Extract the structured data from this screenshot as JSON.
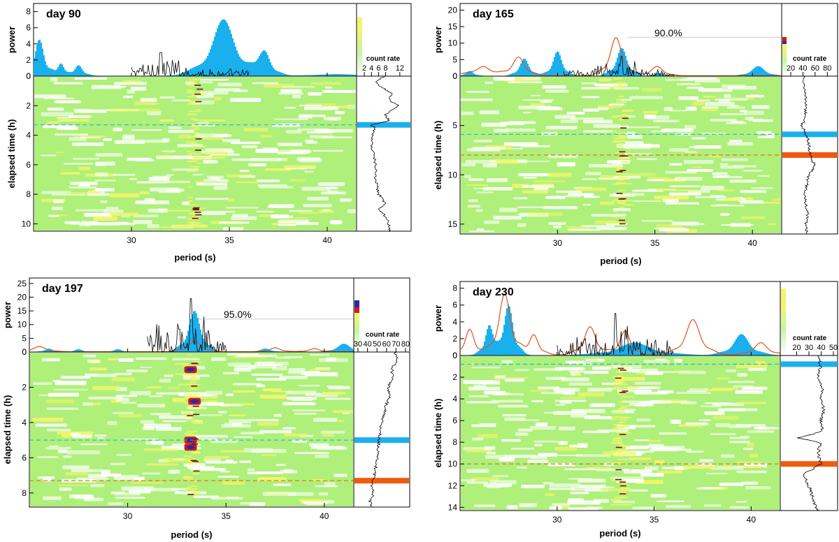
{
  "colors": {
    "histogram": "#1ab0ee",
    "power_trace": "#000000",
    "significance_curve": "#e0531c",
    "heatmap_bg": "#ffffff",
    "heatmap_green": "#aef07a",
    "heatmap_yellow": "#f2f56a",
    "hot_red": "#d81818",
    "hot_blue": "#2a2aa8",
    "cyan_marker": "#1ab0ee",
    "orange_marker": "#f05a0f"
  },
  "chart_data": [
    {
      "type": "heatmap",
      "title": "day 90",
      "xlabel": "period (s)",
      "ylabel_top": "power",
      "ylabel_bottom": "elapsed time (h)",
      "xlim": [
        25,
        41.5
      ],
      "xticks": [
        "30",
        "35",
        "40"
      ],
      "power_ylim": [
        0,
        9
      ],
      "power_yticks": [
        "0",
        "2",
        "4",
        "6",
        "8"
      ],
      "time_ylim": [
        0,
        10.5
      ],
      "time_yticks": [
        "0",
        "2",
        "4",
        "6",
        "8",
        "10"
      ],
      "colorbar_label": "count rate",
      "colorbar_ticks": [
        "2",
        "4",
        "6",
        "8",
        "12"
      ],
      "colorbar_ticks_pos": [
        2,
        4,
        6,
        8,
        12
      ],
      "colorbar_range": [
        1,
        14
      ],
      "significance_label": "",
      "significance_level": null,
      "power_bumps": [
        [
          25.3,
          4.5,
          0.35
        ],
        [
          26.4,
          1.5,
          0.25
        ],
        [
          27.3,
          1.3,
          0.3
        ],
        [
          34.7,
          7.0,
          0.85
        ],
        [
          36.8,
          2.8,
          0.45
        ],
        [
          40.5,
          0.2,
          1.5
        ]
      ],
      "sig_bumps": [],
      "noise_range": [
        30,
        36
      ],
      "noise_peak": 2.9,
      "noise_peak_x": 31.5,
      "markers": [
        {
          "time": 3.3,
          "color": "cyan"
        }
      ],
      "hot_spots": [],
      "count_rate_profile": [
        [
          0,
          8
        ],
        [
          0.3,
          5
        ],
        [
          0.6,
          6
        ],
        [
          0.9,
          8
        ],
        [
          1.2,
          10
        ],
        [
          1.6,
          9
        ],
        [
          2.0,
          12
        ],
        [
          2.3,
          10
        ],
        [
          2.6,
          8
        ],
        [
          3.0,
          9
        ],
        [
          3.2,
          6
        ],
        [
          3.3,
          3
        ],
        [
          3.5,
          5
        ],
        [
          4.0,
          4
        ],
        [
          5.0,
          4
        ],
        [
          6.0,
          5
        ],
        [
          7.0,
          5
        ],
        [
          8.0,
          6
        ],
        [
          8.7,
          8
        ],
        [
          9.0,
          6
        ],
        [
          9.5,
          8
        ],
        [
          10.0,
          9
        ],
        [
          10.5,
          9
        ]
      ]
    },
    {
      "type": "heatmap",
      "title": "day 165",
      "xlabel": "period (s)",
      "ylabel_top": "power",
      "ylabel_bottom": "elapsed time (h)",
      "xlim": [
        25,
        41.5
      ],
      "xticks": [
        "30",
        "35",
        "40"
      ],
      "power_ylim": [
        0,
        22
      ],
      "power_yticks": [
        "0",
        "5",
        "10",
        "15",
        "20"
      ],
      "time_ylim": [
        0,
        16
      ],
      "time_yticks": [
        "0",
        "5",
        "10",
        "15"
      ],
      "colorbar_label": "count rate",
      "colorbar_ticks": [
        "20",
        "40",
        "60",
        "80"
      ],
      "colorbar_ticks_pos": [
        20,
        40,
        60,
        80
      ],
      "colorbar_range": [
        12,
        90
      ],
      "significance_label": "90.0%",
      "significance_level": 11.8,
      "power_bumps": [
        [
          25.5,
          1.5,
          0.3
        ],
        [
          28.3,
          5.3,
          0.35
        ],
        [
          30.0,
          7.5,
          0.35
        ],
        [
          33.3,
          8.5,
          0.4
        ],
        [
          35.2,
          1.0,
          0.3
        ],
        [
          40.3,
          3.0,
          0.5
        ]
      ],
      "sig_bumps": [
        [
          26.2,
          2.0,
          0.45
        ],
        [
          28.0,
          5.8,
          0.45
        ],
        [
          33.0,
          12.2,
          0.45
        ],
        [
          35.1,
          3.0,
          0.45
        ],
        [
          26.0,
          1.0,
          1.5
        ]
      ],
      "noise_range": [
        30.3,
        36
      ],
      "noise_peak": 6.0,
      "noise_peak_x": 33.3,
      "markers": [
        {
          "time": 5.9,
          "color": "cyan"
        },
        {
          "time": 8.0,
          "color": "orange"
        }
      ],
      "hot_spots": [],
      "count_rate_profile": [
        [
          0,
          42
        ],
        [
          1,
          40
        ],
        [
          2,
          45
        ],
        [
          3,
          44
        ],
        [
          4,
          43
        ],
        [
          5,
          38
        ],
        [
          6,
          46
        ],
        [
          7,
          50
        ],
        [
          8,
          52
        ],
        [
          8.5,
          55
        ],
        [
          9,
          60
        ],
        [
          9.5,
          56
        ],
        [
          10,
          50
        ],
        [
          11,
          46
        ],
        [
          12,
          42
        ],
        [
          13,
          45
        ],
        [
          14,
          47
        ],
        [
          15,
          44
        ],
        [
          16,
          46
        ]
      ]
    },
    {
      "type": "heatmap",
      "title": "day 197",
      "xlabel": "period (s)",
      "ylabel_top": "power",
      "ylabel_bottom": "elapsed time (h)",
      "xlim": [
        25,
        41.5
      ],
      "xticks": [
        "30",
        "35",
        "40"
      ],
      "power_ylim": [
        0,
        27
      ],
      "power_yticks": [
        "0",
        "5",
        "10",
        "15",
        "20",
        "25"
      ],
      "time_ylim": [
        0,
        8.8
      ],
      "time_yticks": [
        "0",
        "2",
        "4",
        "6",
        "8"
      ],
      "colorbar_label": "count rate",
      "colorbar_ticks": [
        "30",
        "40",
        "50",
        "60",
        "70",
        "80"
      ],
      "colorbar_ticks_pos": [
        30,
        40,
        50,
        60,
        70,
        80
      ],
      "colorbar_range": [
        30,
        80
      ],
      "significance_label": "95.0%",
      "significance_level": 12.0,
      "power_bumps": [
        [
          33.4,
          15.0,
          0.45
        ],
        [
          26.0,
          1.2,
          0.3
        ],
        [
          27.5,
          1.0,
          0.3
        ],
        [
          29.5,
          1.0,
          0.3
        ],
        [
          37.0,
          1.2,
          0.4
        ],
        [
          41.0,
          3.0,
          0.5
        ]
      ],
      "sig_bumps": [
        [
          25.5,
          2.0,
          0.5
        ],
        [
          33.4,
          4.0,
          0.5
        ],
        [
          37.5,
          1.5,
          0.4
        ],
        [
          39.5,
          1.2,
          0.4
        ]
      ],
      "noise_range": [
        31,
        35
      ],
      "noise_peak": 19.5,
      "noise_peak_x": 33.2,
      "markers": [
        {
          "time": 5.0,
          "color": "cyan"
        },
        {
          "time": 7.3,
          "color": "orange"
        }
      ],
      "hot_spots": [
        [
          33.2,
          1.0
        ],
        [
          33.4,
          2.8
        ],
        [
          33.2,
          5.0
        ],
        [
          33.2,
          5.4
        ]
      ],
      "count_rate_profile": [
        [
          0,
          70
        ],
        [
          0.5,
          72
        ],
        [
          1.0,
          66
        ],
        [
          1.5,
          68
        ],
        [
          2.0,
          62
        ],
        [
          2.5,
          64
        ],
        [
          3.0,
          60
        ],
        [
          3.5,
          58
        ],
        [
          4.0,
          55
        ],
        [
          5.0,
          52
        ],
        [
          6.0,
          50
        ],
        [
          7.0,
          47
        ],
        [
          7.5,
          44
        ],
        [
          8.0,
          46
        ],
        [
          8.5,
          42
        ],
        [
          8.8,
          44
        ]
      ]
    },
    {
      "type": "heatmap",
      "title": "day 230",
      "xlabel": "period (s)",
      "ylabel_top": "power",
      "ylabel_bottom": "elapsed time (h)",
      "xlim": [
        25,
        41.5
      ],
      "xticks": [
        "30",
        "35",
        "40"
      ],
      "power_ylim": [
        0,
        8.8
      ],
      "power_yticks": [
        "0",
        "2",
        "4",
        "6",
        "8"
      ],
      "time_ylim": [
        0,
        14.3
      ],
      "time_yticks": [
        "0",
        "2",
        "4",
        "6",
        "8",
        "10",
        "12",
        "14"
      ],
      "colorbar_label": "count rate",
      "colorbar_ticks": [
        "20",
        "30",
        "40",
        "50"
      ],
      "colorbar_ticks_pos": [
        20,
        30,
        40,
        50
      ],
      "colorbar_range": [
        10,
        50
      ],
      "significance_label": "",
      "significance_level": null,
      "power_bumps": [
        [
          26.5,
          3.5,
          0.3
        ],
        [
          27.5,
          6.0,
          0.35
        ],
        [
          34.0,
          1.5,
          1.2
        ],
        [
          39.5,
          2.5,
          0.6
        ]
      ],
      "sig_bumps": [
        [
          25.5,
          3.2,
          0.35
        ],
        [
          27.3,
          7.6,
          0.45
        ],
        [
          28.8,
          2.5,
          0.35
        ],
        [
          31.7,
          3.5,
          0.45
        ],
        [
          33.5,
          3.0,
          0.4
        ],
        [
          37.0,
          4.4,
          0.55
        ],
        [
          40.5,
          1.5,
          0.5
        ]
      ],
      "noise_range": [
        30,
        36
      ],
      "noise_peak": 5.0,
      "noise_peak_x": 33.0,
      "markers": [
        {
          "time": 0.8,
          "color": "cyan"
        },
        {
          "time": 10.0,
          "color": "orange"
        }
      ],
      "hot_spots": [],
      "count_rate_profile": [
        [
          0,
          38
        ],
        [
          1,
          40
        ],
        [
          2,
          38
        ],
        [
          3,
          42
        ],
        [
          4,
          40
        ],
        [
          5,
          43
        ],
        [
          6,
          40
        ],
        [
          7,
          42
        ],
        [
          7.6,
          20
        ],
        [
          8.0,
          40
        ],
        [
          9.0,
          38
        ],
        [
          10.0,
          40
        ],
        [
          11.0,
          25
        ],
        [
          12.0,
          30
        ],
        [
          13.0,
          33
        ],
        [
          14.0,
          36
        ],
        [
          14.3,
          38
        ]
      ]
    }
  ]
}
